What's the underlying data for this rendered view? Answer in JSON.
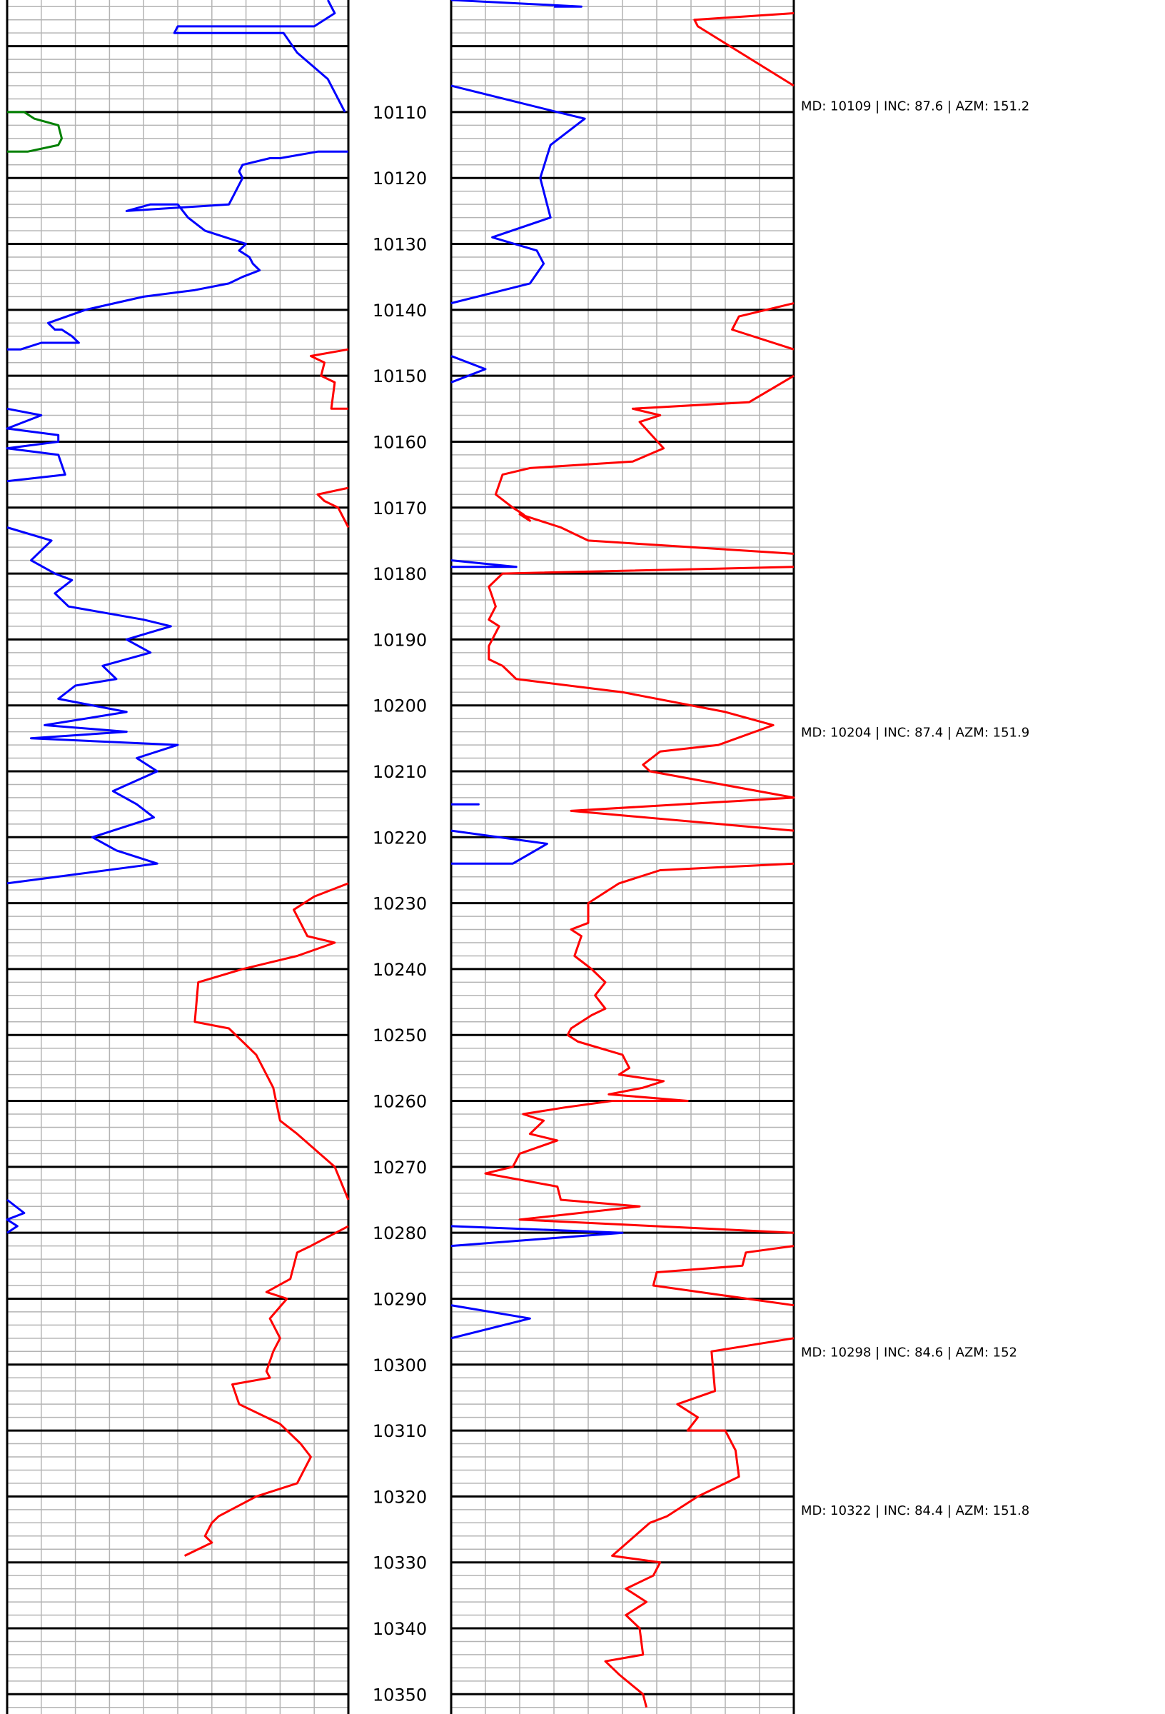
{
  "chart_data": [
    {
      "type": "line",
      "title": "",
      "xlabel": "",
      "ylabel": "",
      "y_axis": "depth",
      "ylim": [
        10093,
        10353
      ],
      "y_reversed": true,
      "xlim": [
        0,
        1
      ],
      "grid": true,
      "series": [
        {
          "color": "#0000ff",
          "x": [
            0.94,
            0.96,
            0.9,
            0.5,
            0.49,
            0.81,
            0.85,
            0.94,
            0.99
          ],
          "y": [
            10093,
            10095,
            10097,
            10097,
            10098,
            10098,
            10101,
            10105,
            10110
          ]
        },
        {
          "color": "#008000",
          "x": [
            0.0,
            0.05,
            0.08,
            0.15,
            0.16,
            0.15,
            0.06,
            0.0
          ],
          "y": [
            10110,
            10110,
            10111,
            10112,
            10114,
            10115,
            10116,
            10116
          ]
        },
        {
          "color": "#0000ff",
          "x": [
            1.0,
            0.91,
            0.8,
            0.77,
            0.69,
            0.68,
            0.69,
            0.67,
            0.65,
            0.35,
            0.42,
            0.5,
            0.53,
            0.58,
            0.64,
            0.7,
            0.68,
            0.71,
            0.72,
            0.74,
            0.69,
            0.65,
            0.55,
            0.4,
            0.23,
            0.12,
            0.14,
            0.16,
            0.19,
            0.21,
            0.16,
            0.1,
            0.04,
            0.0
          ],
          "y": [
            10116,
            10116,
            10117,
            10117,
            10118,
            10119,
            10120,
            10122,
            10124,
            10125,
            10124,
            10124,
            10126,
            10128,
            10129,
            10130,
            10131,
            10132,
            10133,
            10134,
            10135,
            10136,
            10137,
            10138,
            10140,
            10142,
            10143,
            10143,
            10144,
            10145,
            10145,
            10145,
            10146,
            10146
          ]
        },
        {
          "color": "#ff0000",
          "x": [
            1.0,
            0.89,
            0.93,
            0.92,
            0.96,
            0.95,
            1.0
          ],
          "y": [
            10146,
            10147,
            10148,
            10150,
            10151,
            10155,
            10155
          ]
        },
        {
          "color": "#0000ff",
          "x": [
            0.0,
            0.1,
            0.0,
            0.15,
            0.15,
            0.0,
            0.15,
            0.17,
            0.0
          ],
          "y": [
            10155,
            10156,
            10158,
            10159,
            10160,
            10161,
            10162,
            10165,
            10166
          ]
        },
        {
          "color": "#ff0000",
          "x": [
            1.0,
            0.91,
            0.93,
            0.97,
            1.0
          ],
          "y": [
            10167,
            10168,
            10169,
            10170,
            10173
          ]
        },
        {
          "color": "#0000ff",
          "x": [
            0.0,
            0.13,
            0.07,
            0.14,
            0.19,
            0.14,
            0.18,
            0.4,
            0.48,
            0.35,
            0.42,
            0.28,
            0.32,
            0.2,
            0.15,
            0.35,
            0.11,
            0.35,
            0.07,
            0.5,
            0.38,
            0.44,
            0.31,
            0.38,
            0.43,
            0.25,
            0.32,
            0.44,
            0.0
          ],
          "y": [
            10173,
            10175,
            10178,
            10180,
            10181,
            10183,
            10185,
            10187,
            10188,
            10190,
            10192,
            10194,
            10196,
            10197,
            10199,
            10201,
            10203,
            10204,
            10205,
            10206,
            10208,
            10210,
            10213,
            10215,
            10217,
            10220,
            10222,
            10224,
            10227
          ]
        },
        {
          "color": "#ff0000",
          "x": [
            1.0,
            0.9,
            0.84,
            0.88,
            0.96,
            0.85,
            0.69,
            0.56,
            0.55,
            0.65,
            0.73,
            0.78,
            0.8,
            0.85,
            0.96,
            1.0
          ],
          "y": [
            10227,
            10229,
            10231,
            10235,
            10236,
            10238,
            10240,
            10242,
            10248,
            10249,
            10253,
            10258,
            10263,
            10265,
            10270,
            10275
          ]
        },
        {
          "color": "#0000ff",
          "x": [
            0.0,
            0.05,
            0.0,
            0.03,
            0.0
          ],
          "y": [
            10275,
            10277,
            10278,
            10279,
            10280
          ]
        },
        {
          "color": "#ff0000",
          "x": [
            1.0,
            0.89,
            0.85,
            0.83,
            0.76,
            0.82,
            0.77,
            0.8,
            0.78,
            0.76,
            0.77,
            0.66,
            0.68,
            0.8,
            0.86,
            0.89,
            0.85,
            0.73,
            0.62,
            0.6,
            0.58,
            0.6,
            0.52
          ],
          "y": [
            10279,
            10282,
            10283,
            10287,
            10289,
            10290,
            10293,
            10296,
            10298,
            10301,
            10302,
            10303,
            10306,
            10309,
            10312,
            10314,
            10318,
            10320,
            10323,
            10324,
            10326,
            10327,
            10329
          ]
        },
        {
          "color": "#0000ff",
          "x": [
            0.0,
            0.38,
            0.3
          ],
          "y": [
            10093,
            10094,
            10094
          ]
        },
        {
          "color": "#0000ff",
          "x": [
            0.0,
            0.31,
            0.39,
            0.29,
            0.26,
            0.28,
            0.29,
            0.12,
            0.25,
            0.27,
            0.23,
            0.0
          ],
          "y": [
            10106,
            10110,
            10111,
            10115,
            10120,
            10124,
            10126,
            10129,
            10131,
            10133,
            10136,
            10139
          ]
        },
        {
          "color": "#ff0000",
          "x": [
            1.0,
            0.71,
            0.72,
            1.0
          ],
          "y": [
            10095,
            10096,
            10097,
            10106
          ]
        },
        {
          "color": "#ff0000",
          "x": [
            1.0,
            0.84,
            0.82,
            1.0
          ],
          "y": [
            10139,
            10141,
            10143,
            10146
          ]
        },
        {
          "color": "#0000ff",
          "x": [
            0.0,
            0.1,
            0.0
          ],
          "y": [
            10147,
            10149,
            10151
          ]
        },
        {
          "color": "#ff0000",
          "x": [
            1.0,
            0.87,
            0.53,
            0.61,
            0.55,
            0.62,
            0.53,
            0.23,
            0.15,
            0.13,
            0.18,
            0.21,
            0.23,
            0.2,
            0.32,
            0.4,
            1.0
          ],
          "y": [
            10150,
            10154,
            10155,
            10156,
            10157,
            10161,
            10163,
            10164,
            10165,
            10168,
            10170,
            10171,
            10172,
            10171,
            10173,
            10175,
            10177
          ]
        },
        {
          "color": "#0000ff",
          "x": [
            0.0,
            0.19,
            0.0
          ],
          "y": [
            10178,
            10179,
            10179
          ]
        },
        {
          "color": "#ff0000",
          "x": [
            1.0,
            0.15,
            0.11,
            0.13,
            0.11,
            0.14,
            0.11,
            0.11,
            0.15,
            0.17,
            0.19,
            0.5,
            0.8,
            0.94,
            0.78,
            0.61,
            0.56,
            0.58,
            1.0,
            0.35,
            1.0
          ],
          "y": [
            10179,
            10180,
            10182,
            10185,
            10187,
            10188,
            10191,
            10193,
            10194,
            10195,
            10196,
            10198,
            10201,
            10203,
            10206,
            10207,
            10209,
            10210,
            10214,
            10216,
            10219
          ]
        },
        {
          "color": "#0000ff",
          "x": [
            0.0,
            0.08,
            0.0
          ],
          "y": [
            10215,
            10215,
            10215
          ]
        },
        {
          "color": "#0000ff",
          "x": [
            0.0,
            0.28,
            0.18,
            0.0
          ],
          "y": [
            10219,
            10221,
            10224,
            10224
          ]
        },
        {
          "color": "#ff0000",
          "x": [
            1.0,
            0.61,
            0.49,
            0.4,
            0.4,
            0.35,
            0.38,
            0.36,
            0.41,
            0.45,
            0.42,
            0.45,
            0.41,
            0.35,
            0.34,
            0.37,
            0.5,
            0.52,
            0.49,
            0.62,
            0.56,
            0.46,
            0.69,
            0.47,
            0.33,
            0.21,
            0.27,
            0.23,
            0.31,
            0.2,
            0.18,
            0.1,
            0.31,
            0.32,
            0.55,
            0.2,
            1.0
          ],
          "y": [
            10224,
            10225,
            10227,
            10230,
            10233,
            10234,
            10235,
            10238,
            10240,
            10242,
            10244,
            10246,
            10247,
            10249,
            10250,
            10251,
            10253,
            10255,
            10256,
            10257,
            10258,
            10259,
            10260,
            10260,
            10261,
            10262,
            10263,
            10265,
            10266,
            10268,
            10270,
            10271,
            10273,
            10275,
            10276,
            10278,
            10280
          ]
        },
        {
          "color": "#0000ff",
          "x": [
            0.0,
            0.5,
            0.0
          ],
          "y": [
            10279,
            10280,
            10282
          ]
        },
        {
          "color": "#ff0000",
          "x": [
            1.0,
            0.86,
            0.85,
            0.6,
            0.59,
            1.0
          ],
          "y": [
            10282,
            10283,
            10285,
            10286,
            10288,
            10291
          ]
        },
        {
          "color": "#0000ff",
          "x": [
            0.0,
            0.23,
            0.0
          ],
          "y": [
            10291,
            10293,
            10296
          ]
        },
        {
          "color": "#ff0000",
          "x": [
            1.0,
            0.76,
            0.77,
            0.66,
            0.72,
            0.69,
            0.73,
            0.8,
            0.83,
            0.84,
            0.72,
            0.63,
            0.58,
            0.47,
            0.61,
            0.59,
            0.51,
            0.57,
            0.51,
            0.55,
            0.56,
            0.45,
            0.49,
            0.56,
            0.57
          ],
          "y": [
            10296,
            10298,
            10304,
            10306,
            10308,
            10310,
            10310,
            10310,
            10313,
            10317,
            10320,
            10323,
            10324,
            10329,
            10330,
            10332,
            10334,
            10336,
            10338,
            10340,
            10344,
            10345,
            10347,
            10350,
            10352
          ]
        }
      ]
    }
  ],
  "depth_track": {
    "ticks": [
      "10110",
      "10120",
      "10130",
      "10140",
      "10150",
      "10160",
      "10170",
      "10180",
      "10190",
      "10200",
      "10210",
      "10220",
      "10230",
      "10240",
      "10250",
      "10260",
      "10270",
      "10280",
      "10290",
      "10300",
      "10310",
      "10320",
      "10330",
      "10340",
      "10350"
    ],
    "tick_values": [
      10110,
      10120,
      10130,
      10140,
      10150,
      10160,
      10170,
      10180,
      10190,
      10200,
      10210,
      10220,
      10230,
      10240,
      10250,
      10260,
      10270,
      10280,
      10290,
      10300,
      10310,
      10320,
      10330,
      10340,
      10350
    ]
  },
  "survey_annotations": [
    {
      "depth": 10109,
      "text": "MD: 10109 | INC: 87.6 | AZM: 151.2"
    },
    {
      "depth": 10204,
      "text": "MD: 10204 | INC: 87.4 | AZM: 151.9"
    },
    {
      "depth": 10298,
      "text": "MD: 10298 | INC: 84.6 | AZM: 152"
    },
    {
      "depth": 10322,
      "text": "MD: 10322 | INC: 84.4 | AZM: 151.8"
    }
  ],
  "colors": {
    "gamma": "#0000ff",
    "resistivity": "#ff0000",
    "aux": "#008000",
    "grid_major": "#000000",
    "grid_minor": "#b4b4b4"
  }
}
